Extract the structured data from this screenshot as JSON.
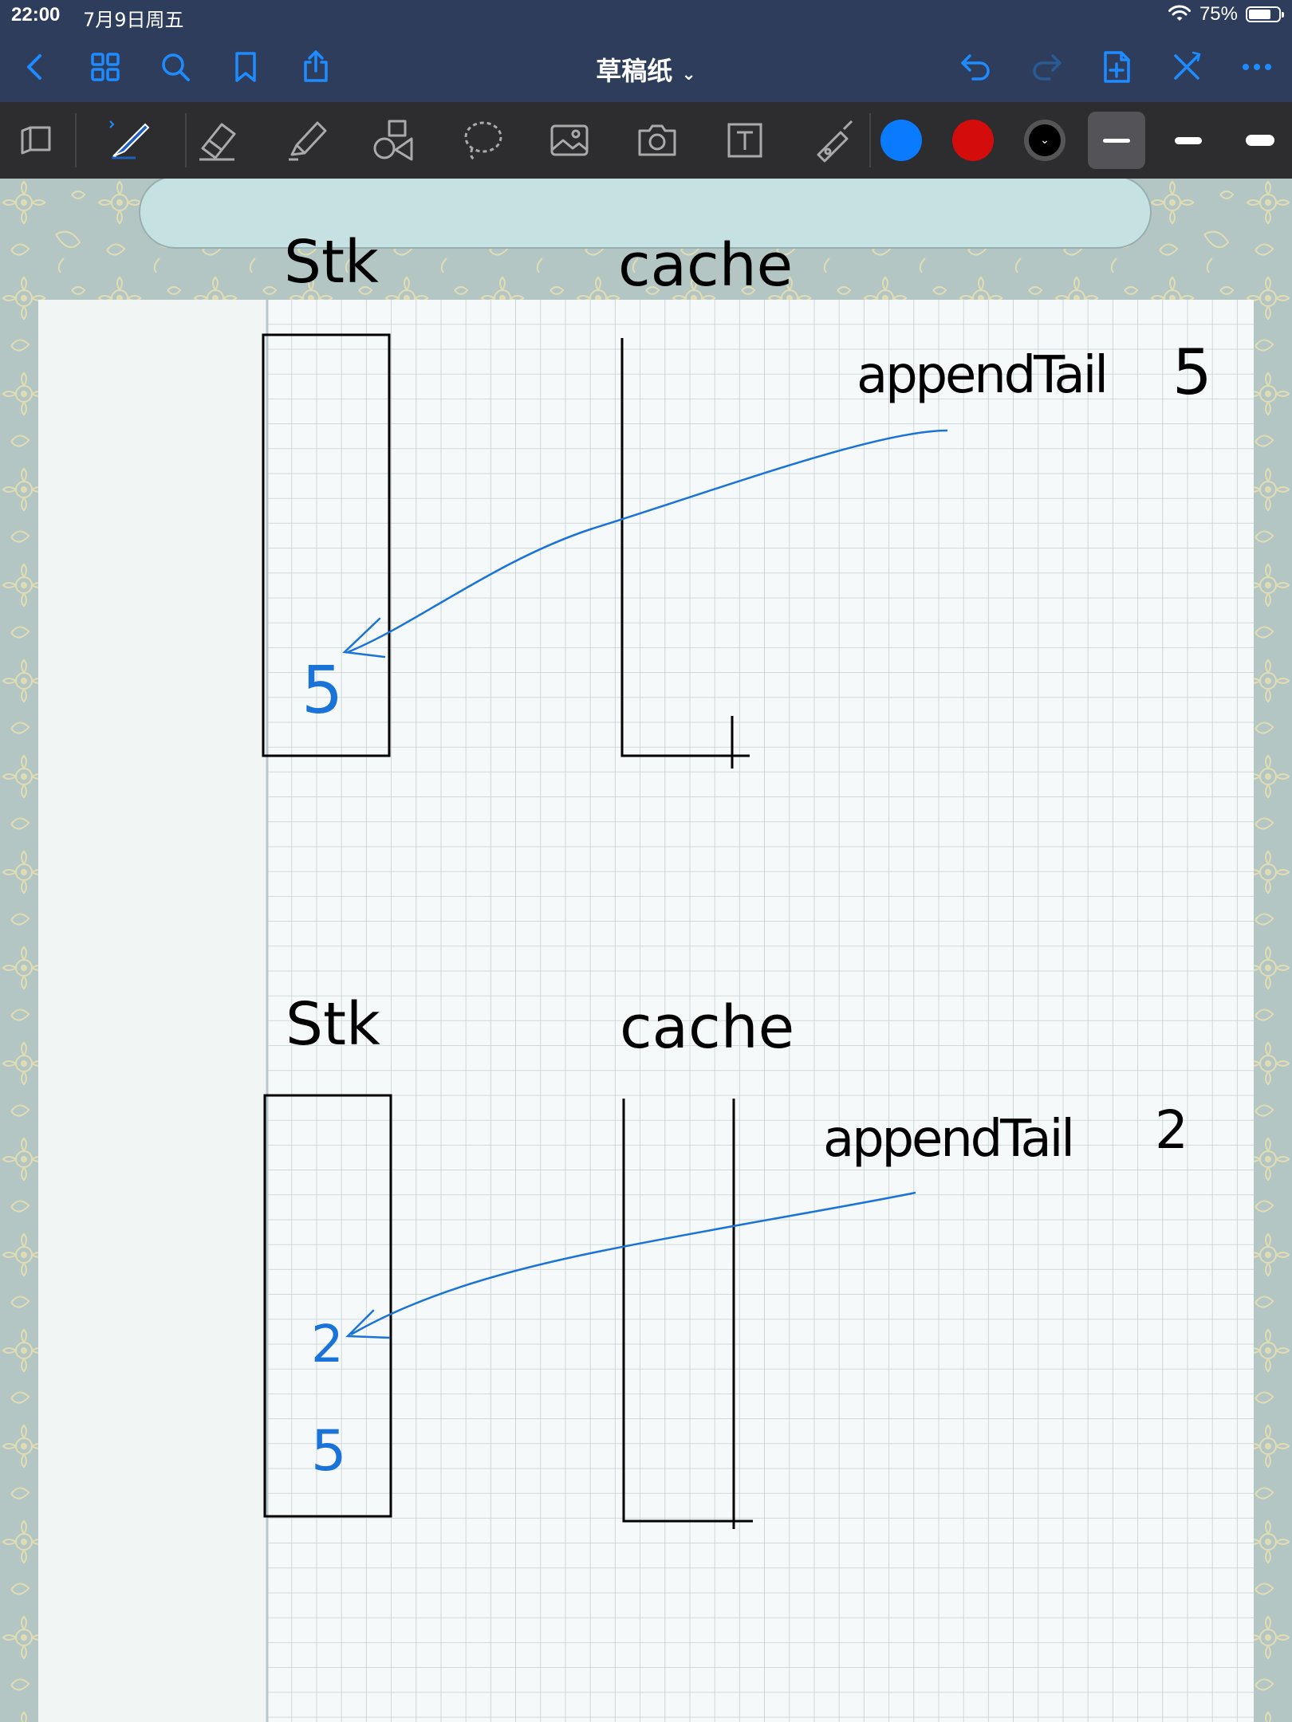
{
  "status": {
    "time": "22:00",
    "date": "7月9日周五",
    "battery": "75%",
    "battery_level": 0.75
  },
  "nav": {
    "title": "草稿纸",
    "icons": [
      "back-icon",
      "grid-icon",
      "search-icon",
      "bookmark-icon",
      "share-icon",
      "undo-icon",
      "redo-icon",
      "add-page-icon",
      "close-icon",
      "more-icon"
    ]
  },
  "toolbar": {
    "tools": [
      "sidebar-icon",
      "pen-icon",
      "eraser-icon",
      "highlighter-icon",
      "shapes-icon",
      "lasso-icon",
      "image-icon",
      "camera-icon",
      "text-icon",
      "laser-icon"
    ],
    "colors": [
      "#0a7bff",
      "#d40c0c",
      "#000000"
    ],
    "pen_color": "#1a73d9"
  },
  "note": {
    "panels": [
      {
        "stack_label": "Stk",
        "cache_label": "cache",
        "op_label": "appendTail",
        "op_value": "5",
        "stack_items": [
          "5"
        ]
      },
      {
        "stack_label": "Stk",
        "cache_label": "cache",
        "op_label": "appendTail",
        "op_value": "2",
        "stack_items": [
          "2",
          "5"
        ]
      }
    ]
  }
}
